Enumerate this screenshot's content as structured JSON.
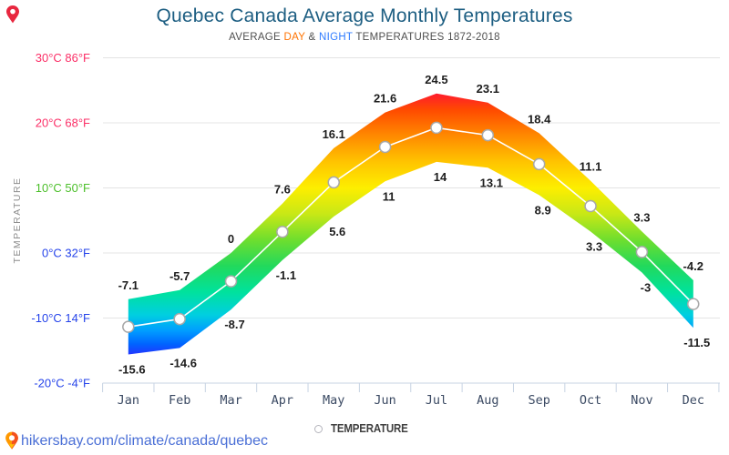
{
  "header": {
    "title": "Quebec Canada Average Monthly Temperatures",
    "subtitle_prefix": "AVERAGE ",
    "subtitle_day": "DAY",
    "subtitle_amp": " & ",
    "subtitle_night": "NIGHT",
    "subtitle_suffix": " TEMPERATURES 1872-2018"
  },
  "colors": {
    "title": "#1d5e82",
    "subtitle": "#4f4f4f",
    "day_accent": "#ff7301",
    "night_accent": "#2e7bff",
    "tick_warm": "#fb2e66",
    "tick_mild": "#4cbf2a",
    "tick_cold": "#2543ea",
    "grid": "#e4e4e4",
    "axis": "#c7d3e3",
    "month_label": "#3b4a63",
    "data_label": "#1d1d1d",
    "legend_text": "#3f3f3f",
    "footer_link": "#4a6fd6",
    "marker_stroke": "#a8a8a8",
    "pin_red": "#e8273f",
    "pin_orange": "#ff9800",
    "pin_orange_dark": "#f4511e",
    "pin_yellow": "#ffc107"
  },
  "y_axis": {
    "title": "TEMPERATURE",
    "ticks": [
      {
        "label": "30°C 86°F",
        "value": 30,
        "color": "#fb2e66"
      },
      {
        "label": "20°C 68°F",
        "value": 20,
        "color": "#fb2e66"
      },
      {
        "label": "10°C 50°F",
        "value": 10,
        "color": "#4cbf2a"
      },
      {
        "label": "0°C 32°F",
        "value": 0,
        "color": "#2543ea"
      },
      {
        "label": "-10°C 14°F",
        "value": -10,
        "color": "#2543ea"
      },
      {
        "label": "-20°C -4°F",
        "value": -20,
        "color": "#2543ea"
      }
    ]
  },
  "legend": {
    "label": "TEMPERATURE"
  },
  "footer": {
    "link": "hikersbay.com/climate/canada/quebec"
  },
  "chart_data": {
    "type": "area",
    "title": "Quebec Canada Average Monthly Temperatures",
    "subtitle": "AVERAGE DAY & NIGHT TEMPERATURES 1872-2018",
    "categories": [
      "Jan",
      "Feb",
      "Mar",
      "Apr",
      "May",
      "Jun",
      "Jul",
      "Aug",
      "Sep",
      "Oct",
      "Nov",
      "Dec"
    ],
    "series": [
      {
        "name": "DAY",
        "values": [
          -7.1,
          -5.7,
          0,
          7.6,
          16.1,
          21.6,
          24.5,
          23.1,
          18.4,
          11.1,
          3.3,
          -4.2
        ]
      },
      {
        "name": "NIGHT",
        "values": [
          -15.6,
          -14.6,
          -8.7,
          -1.1,
          5.6,
          11,
          14,
          13.1,
          8.9,
          3.3,
          -3,
          -11.5
        ]
      }
    ],
    "labels_day": [
      "-7.1",
      "-5.7",
      "0",
      "7.6",
      "16.1",
      "21.6",
      "24.5",
      "23.1",
      "18.4",
      "11.1",
      "3.3",
      "-4.2"
    ],
    "labels_night": [
      "-15.6",
      "-14.6",
      "-8.7",
      "-1.1",
      "5.6",
      "11",
      "14",
      "13.1",
      "8.9",
      "3.3",
      "-3",
      "-11.5"
    ],
    "marker_line": "average of day and night",
    "marker_values": [
      -11.35,
      -10.15,
      -4.35,
      3.25,
      10.85,
      16.3,
      19.25,
      18.1,
      13.65,
      7.2,
      0.15,
      -7.85
    ],
    "ylabel": "TEMPERATURE",
    "ylim": [
      -20,
      30
    ],
    "grid": "horizontal",
    "legend_position": "bottom",
    "legend_entries": [
      "TEMPERATURE"
    ]
  }
}
